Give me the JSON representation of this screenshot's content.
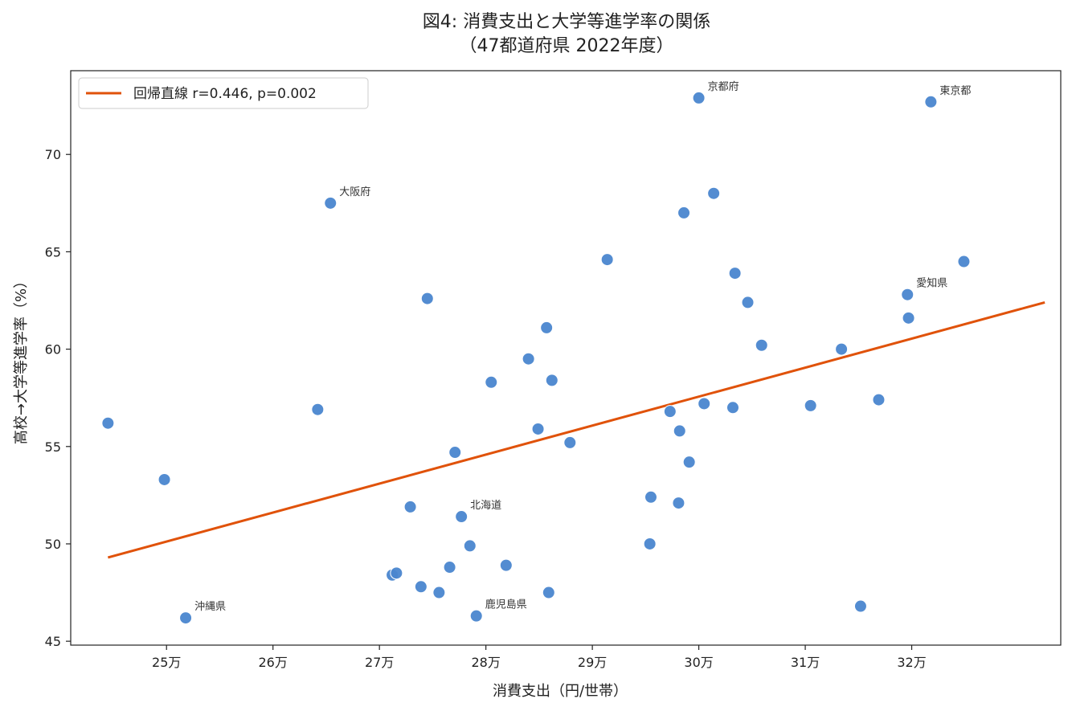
{
  "chart_data": {
    "type": "scatter",
    "title_line1": "図4: 消費支出と大学等進学率の関係",
    "title_line2": "（47都道府県 2022年度）",
    "xlabel": "消費支出（円/世帯）",
    "ylabel": "高校→大学等進学率（%）",
    "xlim": [
      241000,
      334000
    ],
    "ylim": [
      44.8,
      74.3
    ],
    "x_ticks": [
      {
        "value": 250000,
        "label": "25万"
      },
      {
        "value": 260000,
        "label": "26万"
      },
      {
        "value": 270000,
        "label": "27万"
      },
      {
        "value": 280000,
        "label": "28万"
      },
      {
        "value": 290000,
        "label": "29万"
      },
      {
        "value": 300000,
        "label": "30万"
      },
      {
        "value": 310000,
        "label": "31万"
      },
      {
        "value": 320000,
        "label": "32万"
      }
    ],
    "y_ticks": [
      {
        "value": 45,
        "label": "45"
      },
      {
        "value": 50,
        "label": "50"
      },
      {
        "value": 55,
        "label": "55"
      },
      {
        "value": 60,
        "label": "60"
      },
      {
        "value": 65,
        "label": "65"
      },
      {
        "value": 70,
        "label": "70"
      }
    ],
    "grid": false,
    "point_color": "#4a86cf",
    "line_color": "#e0520a",
    "legend": {
      "placement": "top-left",
      "label": "回帰直線  r=0.446, p=0.002"
    },
    "regression_line": {
      "x": [
        244500,
        332500
      ],
      "y": [
        49.3,
        62.4
      ]
    },
    "points": [
      {
        "x": 244500,
        "y": 56.2
      },
      {
        "x": 249800,
        "y": 53.3
      },
      {
        "x": 251800,
        "y": 46.2,
        "label": "沖縄県"
      },
      {
        "x": 264200,
        "y": 56.9
      },
      {
        "x": 265400,
        "y": 67.5,
        "label": "大阪府"
      },
      {
        "x": 271200,
        "y": 48.4
      },
      {
        "x": 271600,
        "y": 48.5
      },
      {
        "x": 272900,
        "y": 51.9
      },
      {
        "x": 273900,
        "y": 47.8
      },
      {
        "x": 274500,
        "y": 62.6
      },
      {
        "x": 275600,
        "y": 47.5
      },
      {
        "x": 276600,
        "y": 48.8
      },
      {
        "x": 277100,
        "y": 54.7
      },
      {
        "x": 277700,
        "y": 51.4,
        "label": "北海道"
      },
      {
        "x": 278500,
        "y": 49.9
      },
      {
        "x": 279100,
        "y": 46.3,
        "label": "鹿児島県"
      },
      {
        "x": 280500,
        "y": 58.3
      },
      {
        "x": 281900,
        "y": 48.9
      },
      {
        "x": 284000,
        "y": 59.5
      },
      {
        "x": 284900,
        "y": 55.9
      },
      {
        "x": 285700,
        "y": 61.1
      },
      {
        "x": 285900,
        "y": 47.5
      },
      {
        "x": 286200,
        "y": 58.4
      },
      {
        "x": 287900,
        "y": 55.2
      },
      {
        "x": 291400,
        "y": 64.6
      },
      {
        "x": 295400,
        "y": 50.0
      },
      {
        "x": 295500,
        "y": 52.4
      },
      {
        "x": 297300,
        "y": 56.8
      },
      {
        "x": 298100,
        "y": 52.1
      },
      {
        "x": 298200,
        "y": 55.8
      },
      {
        "x": 298600,
        "y": 67.0
      },
      {
        "x": 299100,
        "y": 54.2
      },
      {
        "x": 300000,
        "y": 72.9,
        "label": "京都府"
      },
      {
        "x": 300500,
        "y": 57.2
      },
      {
        "x": 301400,
        "y": 68.0
      },
      {
        "x": 303200,
        "y": 57.0
      },
      {
        "x": 303400,
        "y": 63.9
      },
      {
        "x": 304600,
        "y": 62.4
      },
      {
        "x": 305900,
        "y": 60.2
      },
      {
        "x": 310500,
        "y": 57.1
      },
      {
        "x": 313400,
        "y": 60.0
      },
      {
        "x": 315200,
        "y": 46.8
      },
      {
        "x": 316900,
        "y": 57.4
      },
      {
        "x": 319600,
        "y": 62.8,
        "label": "愛知県"
      },
      {
        "x": 319700,
        "y": 61.6
      },
      {
        "x": 321800,
        "y": 72.7,
        "label": "東京都"
      },
      {
        "x": 324900,
        "y": 64.5
      }
    ]
  }
}
